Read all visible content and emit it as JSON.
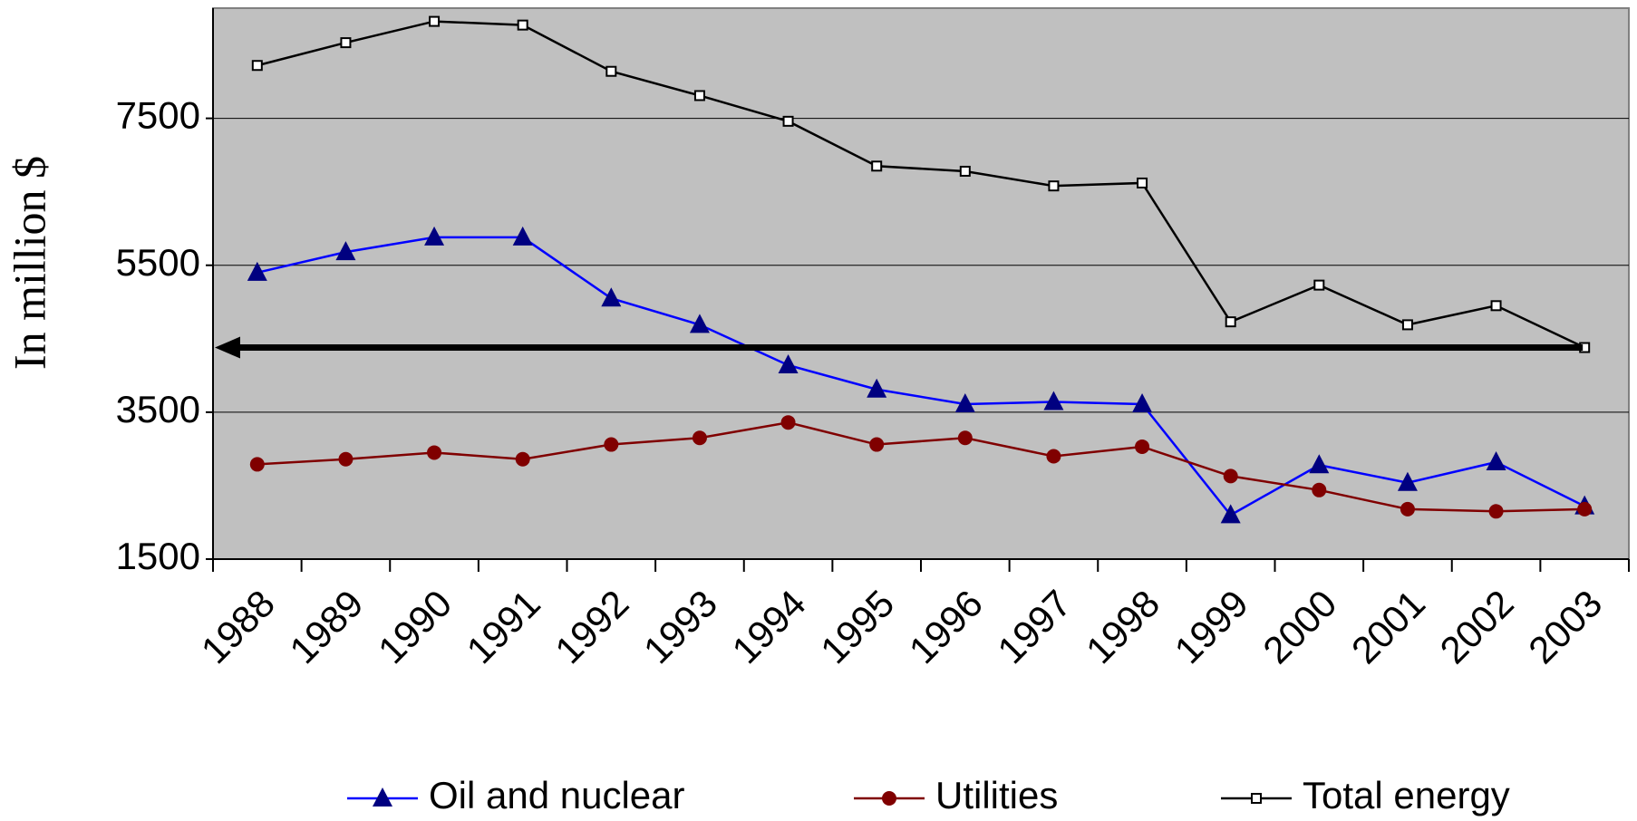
{
  "chart_data": {
    "type": "line",
    "y_label": "In million $",
    "categories": [
      "1988",
      "1989",
      "1990",
      "1991",
      "1992",
      "1993",
      "1994",
      "1995",
      "1996",
      "1997",
      "1998",
      "1999",
      "2000",
      "2001",
      "2002",
      "2003"
    ],
    "series": [
      {
        "name": "Oil and nuclear",
        "color": "#0000ff",
        "marker": "triangle",
        "marker_color": "#000080",
        "values": [
          5400,
          5680,
          5880,
          5880,
          5050,
          4690,
          4140,
          3810,
          3610,
          3640,
          3610,
          2100,
          2780,
          2540,
          2820,
          2220
        ]
      },
      {
        "name": "Utilities",
        "color": "#800000",
        "marker": "circle",
        "marker_color": "#800000",
        "values": [
          2790,
          2860,
          2950,
          2860,
          3060,
          3150,
          3360,
          3060,
          3150,
          2900,
          3030,
          2630,
          2440,
          2180,
          2150,
          2180
        ]
      },
      {
        "name": "Total energy",
        "color": "#000000",
        "marker": "square",
        "marker_color": "#000000",
        "values": [
          8220,
          8530,
          8820,
          8770,
          8140,
          7810,
          7460,
          6850,
          6780,
          6580,
          6620,
          4730,
          5230,
          4690,
          4950,
          4380
        ]
      }
    ],
    "ylim": [
      1500,
      9000
    ],
    "yticks": [
      1500,
      3500,
      5500,
      7500
    ],
    "grid": true,
    "plot_background": "#c0c0c0",
    "legend": "bottom"
  }
}
